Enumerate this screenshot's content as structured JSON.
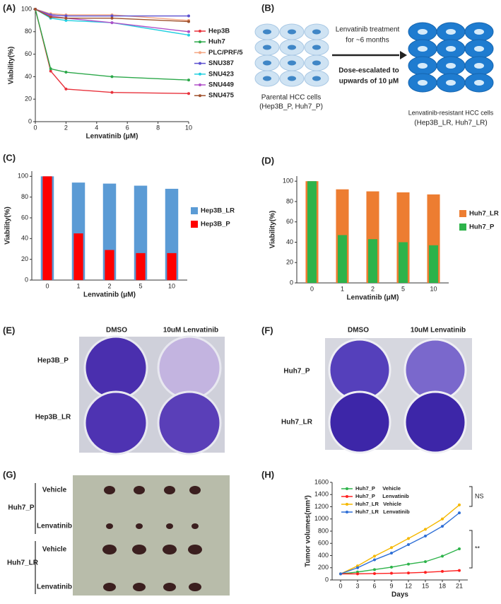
{
  "chart_data": [
    {
      "title": "(A)",
      "type": "line",
      "x": [
        0,
        1,
        2,
        5,
        10
      ],
      "xlim": [
        0,
        10
      ],
      "xticks": [
        0,
        2,
        4,
        6,
        8,
        10
      ],
      "ylim": [
        0,
        100
      ],
      "yticks": [
        0,
        20,
        40,
        60,
        80,
        100
      ],
      "xlabel": "Lenvatinib (μM)",
      "ylabel": "Viability(%)",
      "legend": "right",
      "series": [
        {
          "name": "Hep3B",
          "color": "#e8323c",
          "values": [
            100,
            45,
            29,
            26,
            25
          ]
        },
        {
          "name": "Huh7",
          "color": "#2ca84a",
          "values": [
            100,
            47,
            44,
            40,
            37
          ]
        },
        {
          "name": "PLC/PRF/5",
          "color": "#f4a582",
          "values": [
            100,
            96,
            95,
            95,
            90
          ]
        },
        {
          "name": "SNU387",
          "color": "#5a4fcf",
          "values": [
            100,
            95,
            94,
            94,
            94
          ]
        },
        {
          "name": "SNU423",
          "color": "#22cfe0",
          "values": [
            100,
            92,
            90,
            88,
            77
          ]
        },
        {
          "name": "SNU449",
          "color": "#b050c8",
          "values": [
            100,
            94,
            92,
            88,
            80
          ]
        },
        {
          "name": "SNU475",
          "color": "#a0522d",
          "values": [
            100,
            93,
            92,
            92,
            89
          ]
        }
      ]
    },
    {
      "title": "(C)",
      "type": "bar",
      "categories": [
        "0",
        "1",
        "2",
        "5",
        "10"
      ],
      "ylim": [
        0,
        105
      ],
      "yticks": [
        0,
        20,
        40,
        60,
        80,
        100
      ],
      "xlabel": "Lenvatinib (μM)",
      "ylabel": "Viability(%)",
      "legend": "right",
      "series": [
        {
          "name": "Hep3B_LR",
          "color": "#5b9bd5",
          "values": [
            100,
            94,
            93,
            91,
            88
          ]
        },
        {
          "name": "Hep3B_P",
          "color": "#ff0000",
          "values": [
            100,
            45,
            29,
            26,
            26
          ]
        }
      ]
    },
    {
      "title": "(D)",
      "type": "bar",
      "categories": [
        "0",
        "1",
        "2",
        "5",
        "10"
      ],
      "ylim": [
        0,
        105
      ],
      "yticks": [
        0,
        20,
        40,
        60,
        80,
        100
      ],
      "xlabel": "Lenvatinib (μM)",
      "ylabel": "Viability(%)",
      "legend": "right",
      "series": [
        {
          "name": "Huh7_LR",
          "color": "#ed7d31",
          "values": [
            100,
            92,
            90,
            89,
            87
          ]
        },
        {
          "name": "Huh7_P",
          "color": "#2db34a",
          "values": [
            100,
            47,
            43,
            40,
            37
          ]
        }
      ]
    },
    {
      "title": "(H)",
      "type": "line",
      "x": [
        0,
        3,
        6,
        9,
        12,
        15,
        18,
        21
      ],
      "xlim": [
        -1.5,
        22.5
      ],
      "xticks": [
        0,
        3,
        6,
        9,
        12,
        15,
        18,
        21
      ],
      "ylim": [
        0,
        1600
      ],
      "yticks": [
        0,
        200,
        400,
        600,
        800,
        1000,
        1200,
        1400,
        1600
      ],
      "xlabel": "Days",
      "ylabel": "Tumor volumes(mm³)",
      "legend": "upper left",
      "annotations": [
        "NS",
        "**"
      ],
      "series": [
        {
          "name": "Huh7_P     Vehicle",
          "color": "#2db34a",
          "values": [
            100,
            130,
            170,
            210,
            260,
            300,
            390,
            510
          ]
        },
        {
          "name": "Huh7_P     Lenvatinib",
          "color": "#ff2020",
          "values": [
            100,
            100,
            105,
            110,
            115,
            125,
            140,
            155
          ]
        },
        {
          "name": "Huh7_LR   Vehicle",
          "color": "#f5b800",
          "values": [
            100,
            230,
            390,
            530,
            680,
            830,
            1000,
            1230
          ]
        },
        {
          "name": "Huh7_LR   Lenvatinib",
          "color": "#2f6fd6",
          "values": [
            100,
            200,
            330,
            440,
            580,
            720,
            880,
            1100
          ]
        }
      ]
    }
  ],
  "panel_b": {
    "label": "(B)",
    "treatment": [
      "Lenvatinib treatment",
      "for ~6 months"
    ],
    "escalation": [
      "Dose-escalated to",
      "upwards of 10 μM"
    ],
    "parental": [
      "Parental HCC cells",
      "(Hep3B_P, Huh7_P)"
    ],
    "resistant": [
      "Lenvatinib-resistant  HCC cells",
      "(Hep3B_LR, Huh7_LR)"
    ]
  },
  "panel_e": {
    "label": "(E)",
    "columns": [
      "DMSO",
      "10uM Lenvatinib"
    ],
    "rows": [
      "Hep3B_P",
      "Hep3B_LR"
    ]
  },
  "panel_f": {
    "label": "(F)",
    "columns": [
      "DMSO",
      "10uM Lenvatinib"
    ],
    "rows": [
      "Huh7_P",
      "Huh7_LR"
    ]
  },
  "panel_g": {
    "label": "(G)",
    "groups": [
      {
        "name": "Huh7_P",
        "rows": [
          "Vehicle",
          "Lenvatinib"
        ]
      },
      {
        "name": "Huh7_LR",
        "rows": [
          "Vehicle",
          "Lenvatinib"
        ]
      }
    ]
  }
}
